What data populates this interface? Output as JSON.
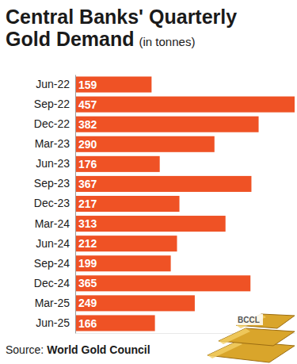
{
  "chart_data": {
    "type": "bar",
    "orientation": "horizontal",
    "title": "Central Banks' Quarterly Gold Demand",
    "subtitle": "(in tonnes)",
    "categories": [
      "Jun-22",
      "Sep-22",
      "Dec-22",
      "Mar-23",
      "Jun-23",
      "Sep-23",
      "Dec-23",
      "Mar-24",
      "Jun-24",
      "Sep-24",
      "Dec-24",
      "Mar-25",
      "Jun-25"
    ],
    "values": [
      159,
      457,
      382,
      290,
      176,
      367,
      217,
      313,
      212,
      199,
      365,
      249,
      166
    ],
    "color": "#ef5225",
    "xlim": [
      0,
      457
    ],
    "xticks": [],
    "data_labels": true,
    "tick_labels": "y",
    "grid": false,
    "annotations": [
      "Source:",
      "World Gold Council",
      "BCCL"
    ]
  }
}
